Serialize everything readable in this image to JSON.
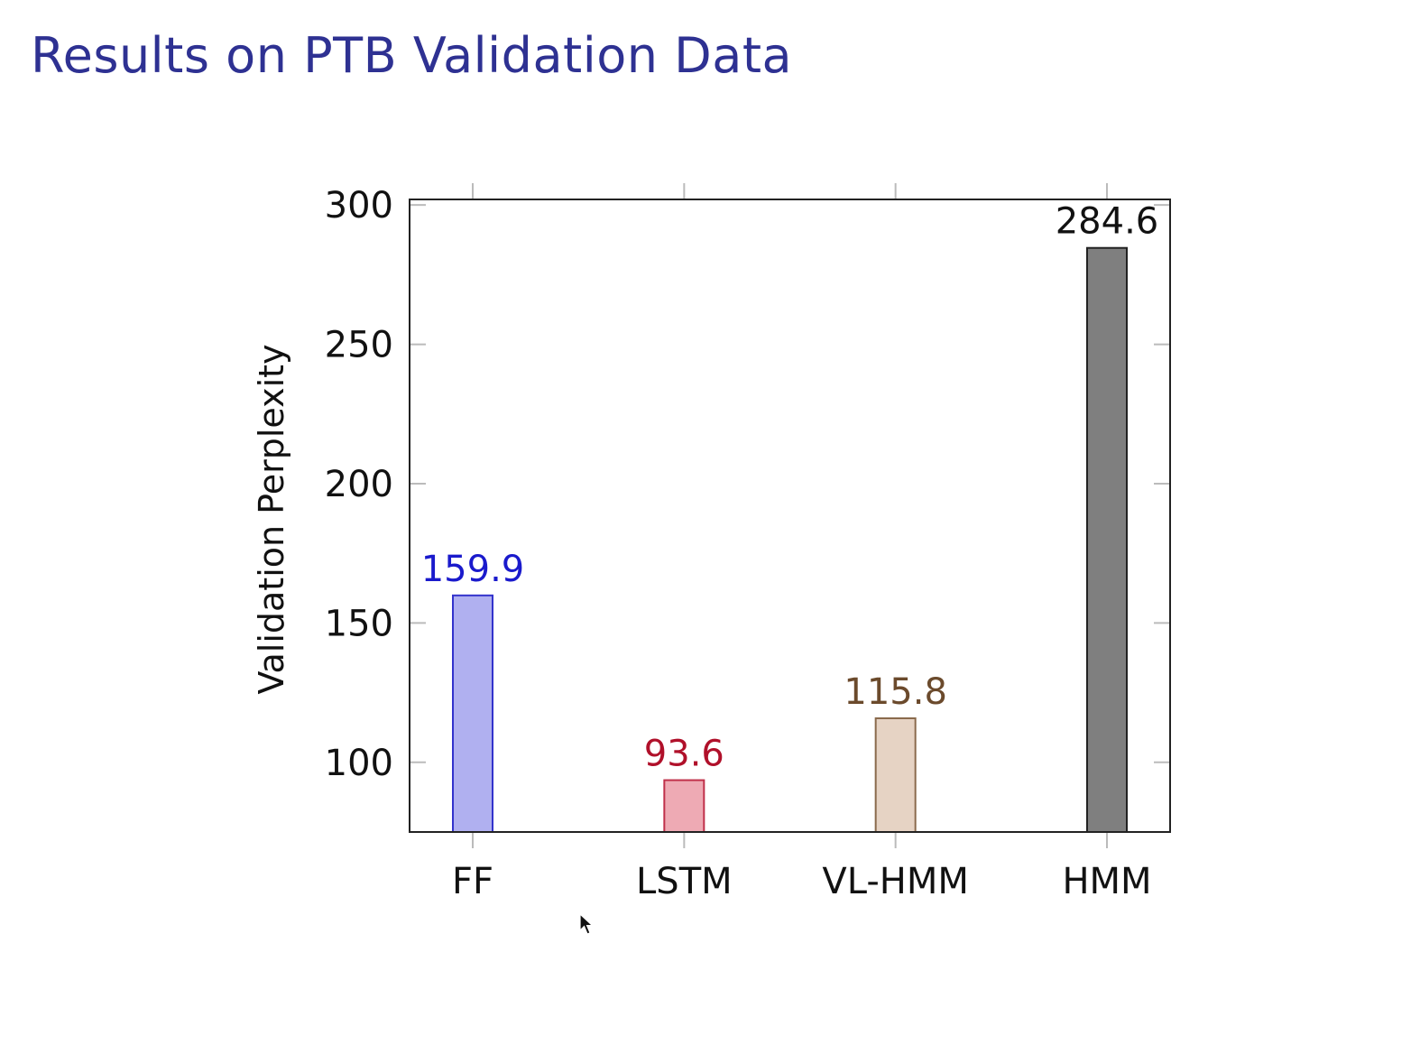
{
  "slide": {
    "title": "Results on PTB Validation Data"
  },
  "chart_data": {
    "type": "bar",
    "title": "",
    "xlabel": "",
    "ylabel": "Validation Perplexity",
    "categories": [
      "FF",
      "LSTM",
      "VL-HMM",
      "HMM"
    ],
    "values": [
      159.9,
      93.6,
      115.8,
      284.6
    ],
    "value_labels": [
      "159.9",
      "93.6",
      "115.8",
      "284.6"
    ],
    "ylim": [
      75,
      302
    ],
    "yticks": [
      100,
      150,
      200,
      250,
      300
    ],
    "ytick_labels": [
      "100",
      "150",
      "200",
      "250",
      "300"
    ],
    "grid": false,
    "legend": "none",
    "bar_colors": [
      {
        "fill": "#b0b0f0",
        "stroke": "#3333cc",
        "label": "#1a1acc"
      },
      {
        "fill": "#eeaab4",
        "stroke": "#c0304a",
        "label": "#b0102a"
      },
      {
        "fill": "#e6d3c4",
        "stroke": "#8a6a4c",
        "label": "#6b4a2c"
      },
      {
        "fill": "#7f7f7f",
        "stroke": "#222222",
        "label": "#111111"
      }
    ]
  }
}
